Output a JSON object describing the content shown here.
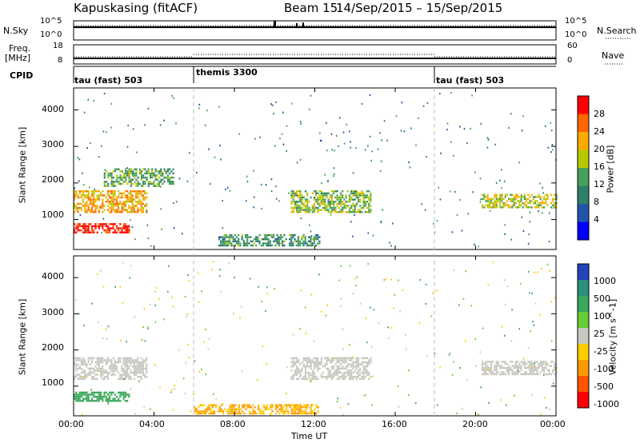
{
  "header": {
    "site": "Kapuskasing (fitACF)",
    "beam": "Beam 15",
    "dates": "14/Sep/2015 – 15/Sep/2015"
  },
  "nsky": {
    "label": "N.Sky",
    "ticks": [
      "10^5",
      "10^0"
    ],
    "right_label": "N.Search",
    "right_ticks": [
      "10^5",
      "10^0"
    ]
  },
  "freq": {
    "label_line1": "Freq.",
    "label_line2": "[MHz]",
    "ticks": [
      "18",
      "8"
    ],
    "right_label": "Nave",
    "right_ticks": [
      "60",
      "0"
    ]
  },
  "cpid": {
    "label": "CPID",
    "segments": [
      {
        "name": "tau (fast) 503",
        "start": 0
      },
      {
        "name": "themis 3300",
        "start": 6
      },
      {
        "name": "tau (fast) 503",
        "start": 18
      }
    ]
  },
  "x_axis": {
    "label": "Time UT",
    "ticks": [
      "00:00",
      "04:00",
      "08:00",
      "12:00",
      "16:00",
      "20:00",
      "00:00"
    ]
  },
  "power_panel": {
    "ylabel": "Slant Range [km]",
    "yticks": [
      "1000",
      "2000",
      "3000",
      "4000"
    ],
    "colorbar_label": "Power [dB]",
    "colorbar_ticks": [
      "4",
      "8",
      "12",
      "16",
      "20",
      "24",
      "28"
    ],
    "colors": [
      "#0000ff",
      "#2255aa",
      "#2f7f6a",
      "#46a05a",
      "#b8c800",
      "#ffaa00",
      "#ff6600",
      "#ff0000"
    ]
  },
  "velocity_panel": {
    "ylabel": "Slant Range [km]",
    "yticks": [
      "1000",
      "2000",
      "3000",
      "4000"
    ],
    "colorbar_label": "Velocity [m s^-1]",
    "colorbar_ticks": [
      "1000",
      "500",
      "100",
      "25",
      "-25",
      "-100",
      "-500",
      "-1000"
    ],
    "colors": [
      "#2244bb",
      "#2c8f7a",
      "#3aa85a",
      "#66cc33",
      "#c8c8c0",
      "#ffcc00",
      "#ff9900",
      "#ff5500",
      "#ff0000"
    ]
  },
  "chart_data": [
    {
      "type": "heatmap",
      "title": "Power",
      "xlabel": "Time UT",
      "ylabel": "Slant Range [km]",
      "xlim": [
        0,
        24
      ],
      "ylim": [
        180,
        4600
      ],
      "colorbar": "Power [dB]",
      "features": [
        {
          "t0": 0.0,
          "t1": 2.8,
          "r0": 650,
          "r1": 900,
          "power": 28
        },
        {
          "t0": 0.0,
          "t1": 3.6,
          "r0": 1200,
          "r1": 1800,
          "power": 20
        },
        {
          "t0": 1.5,
          "t1": 5.0,
          "r0": 1900,
          "r1": 2400,
          "power": 12
        },
        {
          "t0": 10.8,
          "t1": 14.8,
          "r0": 1200,
          "r1": 1800,
          "power": 14
        },
        {
          "t0": 20.3,
          "t1": 24.0,
          "r0": 1350,
          "r1": 1700,
          "power": 16
        },
        {
          "t0": 7.2,
          "t1": 12.2,
          "r0": 300,
          "r1": 600,
          "power": 10
        }
      ]
    },
    {
      "type": "heatmap",
      "title": "Velocity",
      "xlabel": "Time UT",
      "ylabel": "Slant Range [km]",
      "xlim": [
        0,
        24
      ],
      "ylim": [
        180,
        4600
      ],
      "colorbar": "Velocity [m s^-1]",
      "features": [
        {
          "t0": 0.0,
          "t1": 3.6,
          "r0": 1200,
          "r1": 1800,
          "velocity": 0
        },
        {
          "t0": 0.0,
          "t1": 2.8,
          "r0": 600,
          "r1": 850,
          "velocity": 150
        },
        {
          "t0": 10.8,
          "t1": 14.8,
          "r0": 1200,
          "r1": 1800,
          "velocity": 0
        },
        {
          "t0": 20.3,
          "t1": 24.0,
          "r0": 1350,
          "r1": 1700,
          "velocity": 0
        },
        {
          "t0": 6.0,
          "t1": 12.2,
          "r0": 250,
          "r1": 500,
          "velocity": -100
        }
      ]
    }
  ]
}
